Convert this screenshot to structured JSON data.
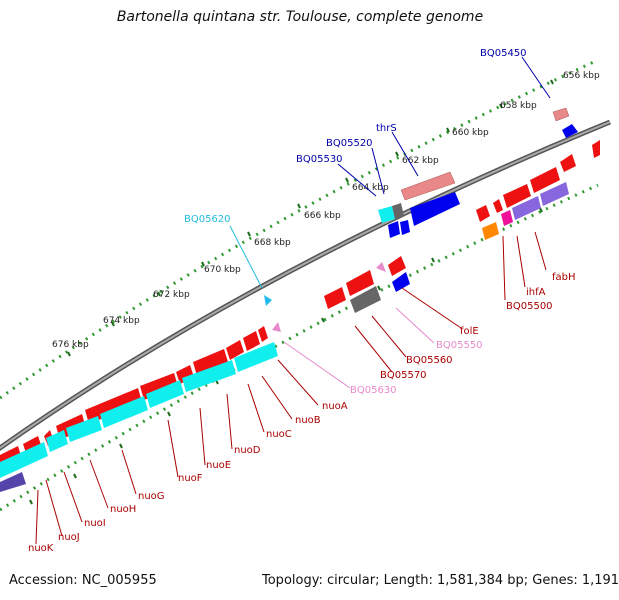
{
  "title": "Bartonella quintana str. Toulouse, complete genome",
  "footer": {
    "accession": "Accession: NC_005955",
    "summary": "Topology: circular; Length: 1,581,384 bp; Genes: 1,191"
  },
  "ticks": [
    "656 kbp",
    "658 kbp",
    "660 kbp",
    "662 kbp",
    "664 kbp",
    "666 kbp",
    "668 kbp",
    "670 kbp",
    "672 kbp",
    "674 kbp",
    "676 kbp"
  ],
  "labels": {
    "BQ05450": "BQ05450",
    "thrS": "thrS",
    "BQ05520": "BQ05520",
    "BQ05530": "BQ05530",
    "BQ05620": "BQ05620",
    "fabH": "fabH",
    "ihfA": "ihfA",
    "BQ05500": "BQ05500",
    "folE": "folE",
    "BQ05550": "BQ05550",
    "BQ05560": "BQ05560",
    "BQ05570": "BQ05570",
    "BQ05630": "BQ05630",
    "nuoA": "nuoA",
    "nuoB": "nuoB",
    "nuoC": "nuoC",
    "nuoD": "nuoD",
    "nuoE": "nuoE",
    "nuoF": "nuoF",
    "nuoG": "nuoG",
    "nuoH": "nuoH",
    "nuoI": "nuoI",
    "nuoJ": "nuoJ",
    "nuoK": "nuoK"
  },
  "colors": {
    "gene_red": "#ee1111",
    "rrna_pink": "#e88888",
    "trna_blue": "#0000ee",
    "cyan": "#11eeee",
    "purple": "#8866dd",
    "gray": "#666666",
    "orange": "#ff8800",
    "magenta": "#ee1199",
    "tick_green": "#339933",
    "label_red": "#aa0000",
    "label_blue": "#0000aa"
  }
}
